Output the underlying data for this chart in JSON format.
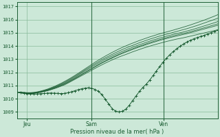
{
  "bg_color": "#cce8d8",
  "grid_color": "#88bb99",
  "line_color": "#1a5c32",
  "ylabel_ticks": [
    1009,
    1010,
    1011,
    1012,
    1013,
    1014,
    1015,
    1016,
    1017
  ],
  "x_tick_labels": [
    "Jeu",
    "Sam",
    "Ven"
  ],
  "x_tick_pos": [
    0.05,
    0.37,
    0.73
  ],
  "xlabel": "Pression niveau de la mer( hPa )",
  "ylim": [
    1008.5,
    1017.3
  ],
  "xlim": [
    0.0,
    1.0
  ],
  "n_steps": 60,
  "ensemble_lines": [
    [
      1010.5,
      1010.45,
      1010.42,
      1010.4,
      1010.4,
      1010.42,
      1010.45,
      1010.5,
      1010.55,
      1010.6,
      1010.68,
      1010.76,
      1010.85,
      1010.95,
      1011.05,
      1011.18,
      1011.32,
      1011.46,
      1011.6,
      1011.74,
      1011.88,
      1012.02,
      1012.16,
      1012.3,
      1012.44,
      1012.57,
      1012.7,
      1012.82,
      1012.94,
      1013.05,
      1013.16,
      1013.26,
      1013.35,
      1013.45,
      1013.55,
      1013.64,
      1013.73,
      1013.82,
      1013.9,
      1013.98,
      1014.06,
      1014.13,
      1014.2,
      1014.27,
      1014.34,
      1014.4,
      1014.46,
      1014.52,
      1014.57,
      1014.62,
      1014.68,
      1014.74,
      1014.8,
      1014.86,
      1014.92,
      1014.98,
      1015.04,
      1015.1,
      1015.16,
      1015.22
    ],
    [
      1010.5,
      1010.44,
      1010.41,
      1010.39,
      1010.39,
      1010.41,
      1010.44,
      1010.49,
      1010.55,
      1010.62,
      1010.7,
      1010.79,
      1010.89,
      1010.99,
      1011.1,
      1011.23,
      1011.37,
      1011.51,
      1011.66,
      1011.81,
      1011.96,
      1012.11,
      1012.26,
      1012.41,
      1012.56,
      1012.7,
      1012.83,
      1012.96,
      1013.08,
      1013.2,
      1013.32,
      1013.43,
      1013.53,
      1013.63,
      1013.73,
      1013.83,
      1013.92,
      1014.01,
      1014.1,
      1014.18,
      1014.26,
      1014.34,
      1014.42,
      1014.49,
      1014.56,
      1014.63,
      1014.69,
      1014.75,
      1014.81,
      1014.87,
      1014.93,
      1015.0,
      1015.07,
      1015.14,
      1015.21,
      1015.28,
      1015.35,
      1015.42,
      1015.49,
      1015.56
    ],
    [
      1010.5,
      1010.46,
      1010.43,
      1010.41,
      1010.41,
      1010.43,
      1010.47,
      1010.52,
      1010.58,
      1010.65,
      1010.73,
      1010.82,
      1010.92,
      1011.03,
      1011.14,
      1011.27,
      1011.41,
      1011.55,
      1011.7,
      1011.85,
      1012.0,
      1012.15,
      1012.3,
      1012.45,
      1012.6,
      1012.74,
      1012.87,
      1013.0,
      1013.13,
      1013.25,
      1013.37,
      1013.48,
      1013.59,
      1013.69,
      1013.79,
      1013.89,
      1013.98,
      1014.07,
      1014.16,
      1014.25,
      1014.33,
      1014.41,
      1014.49,
      1014.56,
      1014.63,
      1014.7,
      1014.77,
      1014.83,
      1014.89,
      1014.95,
      1015.01,
      1015.08,
      1015.15,
      1015.22,
      1015.3,
      1015.37,
      1015.44,
      1015.52,
      1015.59,
      1015.67
    ],
    [
      1010.5,
      1010.47,
      1010.44,
      1010.42,
      1010.42,
      1010.44,
      1010.48,
      1010.53,
      1010.6,
      1010.67,
      1010.76,
      1010.86,
      1010.96,
      1011.07,
      1011.19,
      1011.33,
      1011.47,
      1011.62,
      1011.78,
      1011.94,
      1012.1,
      1012.25,
      1012.41,
      1012.56,
      1012.71,
      1012.85,
      1012.99,
      1013.12,
      1013.24,
      1013.36,
      1013.48,
      1013.59,
      1013.7,
      1013.8,
      1013.9,
      1014.0,
      1014.09,
      1014.18,
      1014.27,
      1014.36,
      1014.44,
      1014.52,
      1014.6,
      1014.67,
      1014.74,
      1014.81,
      1014.88,
      1014.94,
      1015.0,
      1015.06,
      1015.13,
      1015.2,
      1015.27,
      1015.35,
      1015.43,
      1015.51,
      1015.59,
      1015.67,
      1015.75,
      1015.84
    ],
    [
      1010.5,
      1010.48,
      1010.46,
      1010.44,
      1010.44,
      1010.46,
      1010.5,
      1010.55,
      1010.62,
      1010.7,
      1010.79,
      1010.89,
      1011.0,
      1011.12,
      1011.25,
      1011.39,
      1011.54,
      1011.69,
      1011.85,
      1012.01,
      1012.18,
      1012.34,
      1012.5,
      1012.66,
      1012.81,
      1012.96,
      1013.1,
      1013.23,
      1013.36,
      1013.49,
      1013.61,
      1013.73,
      1013.84,
      1013.94,
      1014.04,
      1014.14,
      1014.24,
      1014.33,
      1014.42,
      1014.51,
      1014.59,
      1014.67,
      1014.75,
      1014.82,
      1014.89,
      1014.96,
      1015.03,
      1015.1,
      1015.17,
      1015.24,
      1015.31,
      1015.39,
      1015.47,
      1015.55,
      1015.64,
      1015.73,
      1015.82,
      1015.91,
      1016.0,
      1016.1
    ],
    [
      1010.5,
      1010.5,
      1010.48,
      1010.46,
      1010.46,
      1010.48,
      1010.52,
      1010.58,
      1010.65,
      1010.73,
      1010.83,
      1010.93,
      1011.05,
      1011.17,
      1011.31,
      1011.45,
      1011.6,
      1011.76,
      1011.92,
      1012.09,
      1012.26,
      1012.43,
      1012.6,
      1012.77,
      1012.93,
      1013.08,
      1013.23,
      1013.37,
      1013.51,
      1013.64,
      1013.77,
      1013.89,
      1014.0,
      1014.11,
      1014.21,
      1014.31,
      1014.41,
      1014.5,
      1014.59,
      1014.68,
      1014.76,
      1014.84,
      1014.92,
      1014.99,
      1015.06,
      1015.13,
      1015.2,
      1015.28,
      1015.35,
      1015.43,
      1015.51,
      1015.59,
      1015.68,
      1015.77,
      1015.86,
      1015.95,
      1016.05,
      1016.15,
      1016.25,
      1016.36
    ]
  ],
  "marker_line": [
    1010.5,
    1010.45,
    1010.41,
    1010.38,
    1010.36,
    1010.35,
    1010.36,
    1010.38,
    1010.4,
    1010.42,
    1010.43,
    1010.42,
    1010.4,
    1010.39,
    1010.4,
    1010.45,
    1010.52,
    1010.6,
    1010.68,
    1010.75,
    1010.8,
    1010.83,
    1010.79,
    1010.7,
    1010.55,
    1010.3,
    1009.95,
    1009.6,
    1009.25,
    1009.05,
    1009.0,
    1009.05,
    1009.2,
    1009.5,
    1009.85,
    1010.2,
    1010.55,
    1010.85,
    1011.1,
    1011.4,
    1011.75,
    1012.1,
    1012.45,
    1012.78,
    1013.08,
    1013.35,
    1013.58,
    1013.79,
    1013.98,
    1014.15,
    1014.3,
    1014.43,
    1014.54,
    1014.63,
    1014.72,
    1014.8,
    1014.9,
    1015.0,
    1015.1,
    1015.2
  ],
  "vline_pos": [
    0.37,
    0.73
  ],
  "figsize": [
    3.2,
    2.0
  ],
  "dpi": 100
}
